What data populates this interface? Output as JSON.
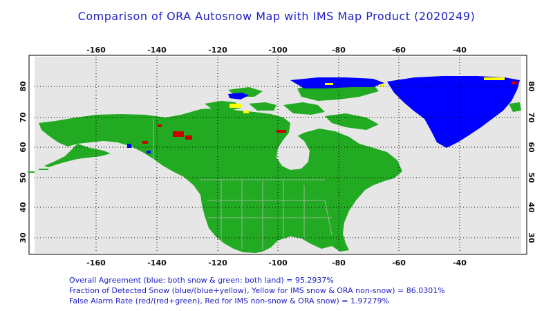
{
  "title": "Comparison of ORA Autosnow Map with IMS Map Product (2020249)",
  "map": {
    "lon_ticks": [
      "-160",
      "-140",
      "-120",
      "-100",
      "-80",
      "-60",
      "-40"
    ],
    "lat_ticks": [
      "30",
      "40",
      "50",
      "60",
      "70",
      "80"
    ],
    "colors": {
      "both_snow": "#0000ff",
      "both_land": "#22aa22",
      "ims_snow_ora_nonsnow": "#ffff00",
      "ims_nonsnow_ora_snow": "#cc0000",
      "water": "#e6e6e6",
      "border": "#bbbbbb"
    }
  },
  "stats": {
    "overall_agreement": "Overall Agreement (blue: both snow & green: both land) =  95.2937%",
    "fraction_detected": "Fraction of Detected Snow (blue/(blue+yellow), Yellow for IMS snow & ORA non-snow) = 86.0301%",
    "false_alarm": "False Alarm Rate (red/(red+green), Red for IMS non-snow & ORA snow)  =  1.97279%"
  }
}
